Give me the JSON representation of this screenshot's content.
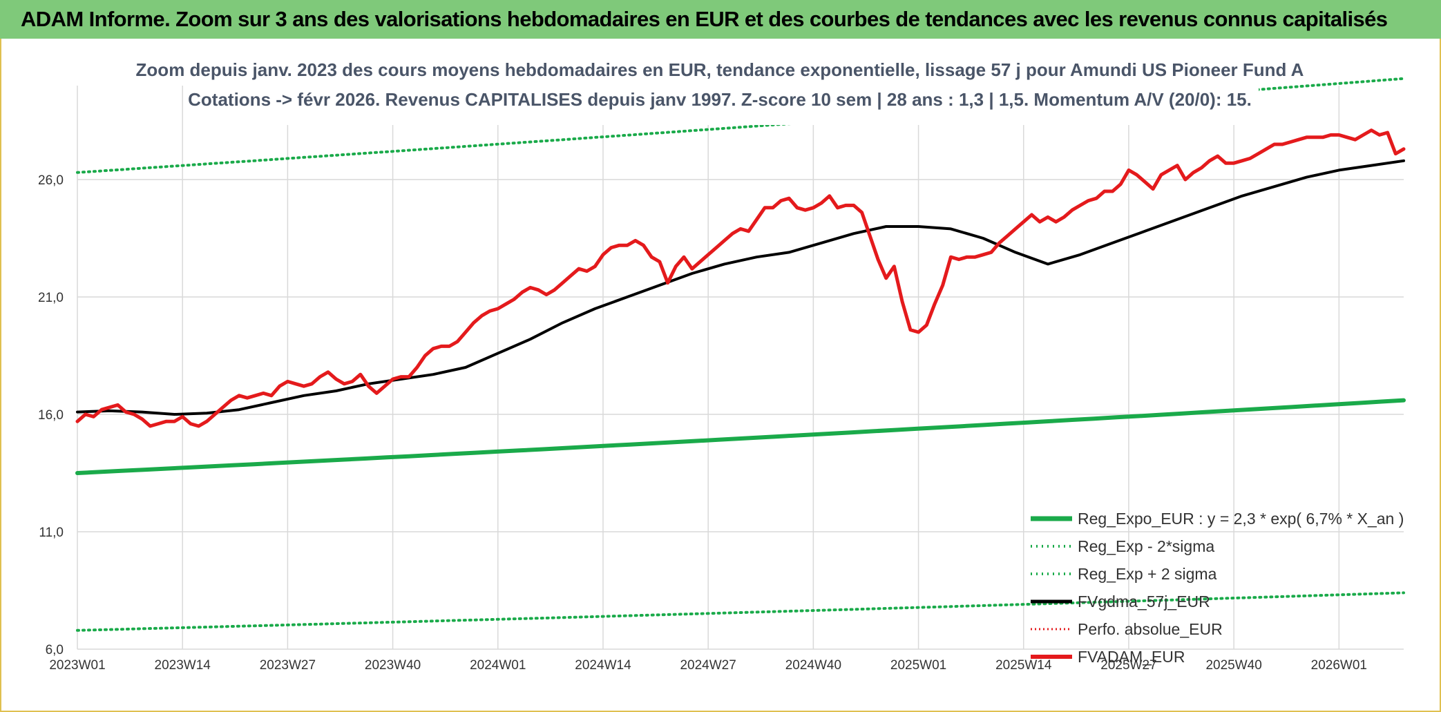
{
  "banner": {
    "title": "ADAM Informe. Zoom sur 3 ans des valorisations hebdomadaires en EUR et des courbes de tendances avec les revenus connus capitalisés"
  },
  "colors": {
    "banner_bg": "#7fc97a",
    "reg_expo": "#1aaa4a",
    "sigma": "#1aaa4a",
    "gdma": "#000000",
    "perfo": "#e41a1c",
    "adam": "#e41a1c",
    "grid": "#d9d9d9"
  },
  "chart_data": {
    "type": "line",
    "title_line1": "Zoom depuis janv. 2023 des cours moyens hebdomadaires en EUR, tendance exponentielle, lissage 57 j pour Amundi US Pioneer Fund A",
    "title_line2": "Cotations -> févr 2026. Revenus CAPITALISES depuis janv 1997. Z-score 10 sem | 28 ans : 1,3 | 1,5. Momentum A/V (20/0): 15.",
    "ylim": [
      6,
      30
    ],
    "y_ticks": [
      "6,0",
      "11,0",
      "16,0",
      "21,0",
      "26,0"
    ],
    "y_tick_values": [
      6,
      11,
      16,
      21,
      26
    ],
    "x_ticks": [
      "2023W01",
      "2023W14",
      "2023W27",
      "2023W40",
      "2024W01",
      "2024W14",
      "2024W27",
      "2024W40",
      "2025W01",
      "2025W14",
      "2025W27",
      "2025W40",
      "2026W01"
    ],
    "x_tick_weeks": [
      0,
      13,
      26,
      39,
      52,
      65,
      78,
      91,
      104,
      117,
      130,
      143,
      156
    ],
    "x_range": [
      0,
      164
    ],
    "grid": true,
    "legend_position": "bottom-right",
    "series": [
      {
        "name": "Reg_Expo_EUR : y = 2,3 * exp( 6,7% *  X_an )",
        "style": "solid-thick",
        "x": [
          0,
          164
        ],
        "y": [
          13.5,
          16.6
        ]
      },
      {
        "name": "Reg_Exp - 2*sigma",
        "style": "dotted",
        "x": [
          0,
          164
        ],
        "y": [
          6.8,
          8.4
        ]
      },
      {
        "name": "Reg_Exp + 2 sigma",
        "style": "dotted",
        "x": [
          0,
          164
        ],
        "y": [
          26.3,
          30.3
        ]
      },
      {
        "name": "FVgdma_57j_EUR",
        "style": "solid",
        "x": [
          0,
          4,
          8,
          12,
          16,
          20,
          24,
          28,
          32,
          36,
          40,
          44,
          48,
          52,
          56,
          60,
          64,
          68,
          72,
          76,
          80,
          84,
          88,
          92,
          96,
          100,
          104,
          108,
          112,
          116,
          120,
          124,
          128,
          132,
          136,
          140,
          144,
          148,
          152,
          156,
          160,
          164
        ],
        "y": [
          16.1,
          16.15,
          16.1,
          16.0,
          16.05,
          16.2,
          16.5,
          16.8,
          17.0,
          17.3,
          17.5,
          17.7,
          18.0,
          18.6,
          19.2,
          19.9,
          20.5,
          21.0,
          21.5,
          22.0,
          22.4,
          22.7,
          22.9,
          23.3,
          23.7,
          24.0,
          24.0,
          23.9,
          23.5,
          22.9,
          22.4,
          22.8,
          23.3,
          23.8,
          24.3,
          24.8,
          25.3,
          25.7,
          26.1,
          26.4,
          26.6,
          26.8
        ]
      },
      {
        "name": "Perfo. absolue_EUR",
        "style": "dotted",
        "x": [],
        "y": []
      },
      {
        "name": "FVADAM_EUR",
        "style": "solid",
        "x": [
          0,
          1,
          2,
          3,
          4,
          5,
          6,
          7,
          8,
          9,
          10,
          11,
          12,
          13,
          14,
          15,
          16,
          17,
          18,
          19,
          20,
          21,
          22,
          23,
          24,
          25,
          26,
          27,
          28,
          29,
          30,
          31,
          32,
          33,
          34,
          35,
          36,
          37,
          38,
          39,
          40,
          41,
          42,
          43,
          44,
          45,
          46,
          47,
          48,
          49,
          50,
          51,
          52,
          53,
          54,
          55,
          56,
          57,
          58,
          59,
          60,
          61,
          62,
          63,
          64,
          65,
          66,
          67,
          68,
          69,
          70,
          71,
          72,
          73,
          74,
          75,
          76,
          77,
          78,
          79,
          80,
          81,
          82,
          83,
          84,
          85,
          86,
          87,
          88,
          89,
          90,
          91,
          92,
          93,
          94,
          95,
          96,
          97,
          98,
          99,
          100,
          101,
          102,
          103,
          104,
          105,
          106,
          107,
          108,
          109,
          110,
          111,
          112,
          113,
          114,
          115,
          116,
          117,
          118,
          119,
          120,
          121,
          122,
          123,
          124,
          125,
          126,
          127,
          128,
          129,
          130,
          131,
          132,
          133,
          134,
          135,
          136,
          137,
          138,
          139,
          140,
          141,
          142,
          143,
          144,
          145,
          146,
          147,
          148,
          149,
          150,
          151,
          152,
          153,
          154,
          155,
          156,
          157,
          158,
          159,
          160,
          161,
          162,
          163,
          164
        ],
        "y": [
          15.7,
          16.0,
          15.9,
          16.2,
          16.3,
          16.4,
          16.1,
          16.0,
          15.8,
          15.5,
          15.6,
          15.7,
          15.7,
          15.9,
          15.6,
          15.5,
          15.7,
          16.0,
          16.3,
          16.6,
          16.8,
          16.7,
          16.8,
          16.9,
          16.8,
          17.2,
          17.4,
          17.3,
          17.2,
          17.3,
          17.6,
          17.8,
          17.5,
          17.3,
          17.4,
          17.7,
          17.2,
          16.9,
          17.2,
          17.5,
          17.6,
          17.6,
          18.0,
          18.5,
          18.8,
          18.9,
          18.9,
          19.1,
          19.5,
          19.9,
          20.2,
          20.4,
          20.5,
          20.7,
          20.9,
          21.2,
          21.4,
          21.3,
          21.1,
          21.3,
          21.6,
          21.9,
          22.2,
          22.1,
          22.3,
          22.8,
          23.1,
          23.2,
          23.2,
          23.4,
          23.2,
          22.7,
          22.5,
          21.6,
          22.3,
          22.7,
          22.2,
          22.5,
          22.8,
          23.1,
          23.4,
          23.7,
          23.9,
          23.8,
          24.3,
          24.8,
          24.8,
          25.1,
          25.2,
          24.8,
          24.7,
          24.8,
          25.0,
          25.3,
          24.8,
          24.9,
          24.9,
          24.6,
          23.6,
          22.6,
          21.8,
          22.3,
          20.8,
          19.6,
          19.5,
          19.8,
          20.7,
          21.5,
          22.7,
          22.6,
          22.7,
          22.7,
          22.8,
          22.9,
          23.3,
          23.6,
          23.9,
          24.2,
          24.5,
          24.2,
          24.4,
          24.2,
          24.4,
          24.7,
          24.9,
          25.1,
          25.2,
          25.5,
          25.5,
          25.8,
          26.4,
          26.2,
          25.9,
          25.6,
          26.2,
          26.4,
          26.6,
          26.0,
          26.3,
          26.5,
          26.8,
          27.0,
          26.7,
          26.7,
          26.8,
          26.9,
          27.1,
          27.3,
          27.5,
          27.5,
          27.6,
          27.7,
          27.8,
          27.8,
          27.8,
          27.9,
          27.9,
          27.8,
          27.7,
          27.9,
          28.1,
          27.9,
          28.0,
          27.1,
          27.3
        ]
      }
    ]
  }
}
